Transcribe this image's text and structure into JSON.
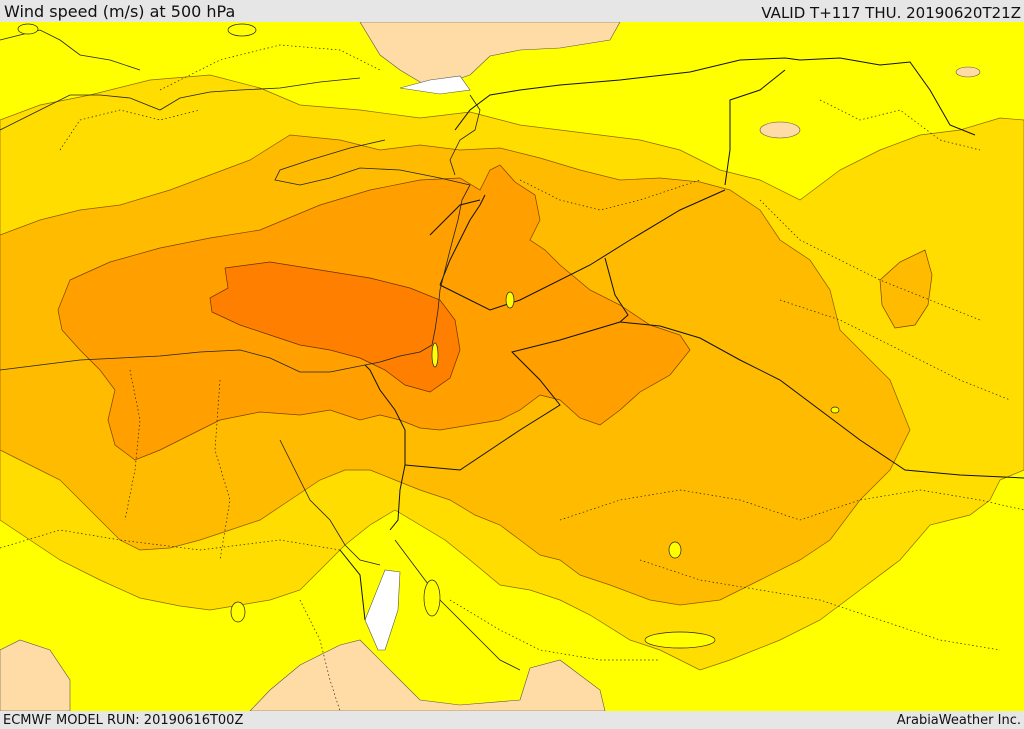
{
  "header": {
    "title": "Wind speed (m/s) at 500 hPa",
    "valid_time": "VALID T+117 THU. 20190620T21Z"
  },
  "footer": {
    "model_run": "ECMWF MODEL RUN: 20190616T00Z",
    "credit": "ArabiaWeather Inc."
  },
  "colors": {
    "level_1": "#ffff00",
    "level_2": "#ffdd00",
    "level_3": "#ffbb00",
    "level_4": "#ff9f00",
    "level_5": "#ff7f00",
    "land_unshaded": "#ffdba6",
    "sea_unshaded": "#ffffff"
  }
}
